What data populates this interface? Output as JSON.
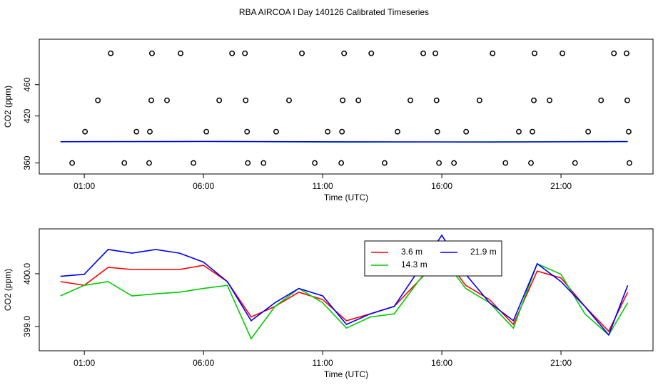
{
  "title": "RBA AIRCOA I  Day 140126  Calibrated Timeseries",
  "chart_data": [
    {
      "type": "scatter",
      "x_label": "Time (UTC)",
      "y_label": "CO2 (ppm)",
      "xlim": [
        -0.89,
        24.86
      ],
      "xticks": [
        {
          "value": 1,
          "label": "01:00"
        },
        {
          "value": 6,
          "label": "06:00"
        },
        {
          "value": 11,
          "label": "11:00"
        },
        {
          "value": 16,
          "label": "16:00"
        },
        {
          "value": 21,
          "label": "21:00"
        }
      ],
      "ylim": [
        346,
        518
      ],
      "yticks": [
        360,
        420,
        460
      ],
      "series": [
        {
          "kind": "points",
          "color": "#000000",
          "x": [
            2.11,
            3.84,
            5.04,
            7.2,
            7.74,
            10.13,
            11.9,
            13.04,
            15.22,
            15.73,
            18.13,
            19.89,
            21.06,
            23.22,
            23.75,
            1.57,
            3.81,
            4.47,
            6.66,
            7.77,
            9.59,
            11.84,
            12.5,
            14.68,
            15.78,
            17.58,
            19.86,
            20.52,
            22.68,
            23.78,
            1.03,
            3.19,
            3.75,
            6.12,
            7.83,
            9.05,
            11.21,
            11.81,
            14.14,
            15.81,
            17.02,
            19.23,
            19.8,
            22.14,
            23.84,
            0.49,
            2.68,
            3.72,
            5.58,
            7.86,
            8.52,
            10.67,
            11.78,
            13.6,
            15.88,
            16.51,
            18.67,
            19.74,
            21.59,
            23.87
          ],
          "values": [
            500,
            500,
            500,
            500,
            500,
            500,
            500,
            500,
            500,
            500,
            500,
            500,
            500,
            500,
            500,
            440,
            440,
            440,
            440,
            440,
            440,
            440,
            440,
            440,
            440,
            440,
            440,
            440,
            440,
            440,
            400,
            400,
            400,
            400,
            400,
            400,
            400,
            400,
            400,
            400,
            400,
            400,
            400,
            400,
            400,
            360,
            360,
            360,
            360,
            360,
            360,
            360,
            360,
            360,
            360,
            360,
            360,
            360,
            360,
            360
          ]
        },
        {
          "kind": "line",
          "color": "#00cc00",
          "x": [
            0,
            6,
            12,
            18,
            23.8
          ],
          "values": [
            387,
            387.5,
            386.5,
            387,
            387.5
          ]
        },
        {
          "kind": "line",
          "color": "#0000ff",
          "x": [
            0,
            6,
            12,
            18,
            23.8
          ],
          "values": [
            387.2,
            387.5,
            387,
            386.8,
            387.3
          ]
        }
      ]
    },
    {
      "type": "line",
      "x_label": "Time (UTC)",
      "y_label": "CO2 (ppm)",
      "xlim": [
        -0.89,
        24.86
      ],
      "xticks": [
        {
          "value": 1,
          "label": "01:00"
        },
        {
          "value": 6,
          "label": "06:00"
        },
        {
          "value": 11,
          "label": "11:00"
        },
        {
          "value": 16,
          "label": "16:00"
        },
        {
          "value": 21,
          "label": "21:00"
        }
      ],
      "ylim": [
        398.54,
        400.85
      ],
      "yticks": [
        {
          "value": 399,
          "label": "399.0"
        },
        {
          "value": 400,
          "label": "400.0"
        }
      ],
      "x": [
        0,
        1,
        2,
        3,
        4,
        5,
        6,
        7,
        8,
        9,
        10,
        11,
        12,
        13,
        14,
        15,
        16,
        17,
        18,
        19,
        20,
        21,
        22,
        23,
        23.8
      ],
      "series": [
        {
          "name": "3.6 m",
          "color": "#ff0000",
          "values": [
            399.85,
            399.78,
            400.12,
            400.08,
            400.08,
            400.08,
            400.16,
            399.85,
            399.18,
            399.38,
            399.65,
            399.51,
            399.11,
            399.24,
            399.38,
            399.85,
            400.39,
            399.78,
            399.51,
            399.04,
            400.05,
            399.92,
            399.38,
            398.91,
            399.65
          ]
        },
        {
          "name": "14.3 m",
          "color": "#00cc00",
          "values": [
            399.58,
            399.78,
            399.85,
            399.58,
            399.62,
            399.65,
            399.72,
            399.78,
            398.77,
            399.38,
            399.72,
            399.45,
            398.97,
            399.18,
            399.24,
            399.85,
            400.32,
            399.72,
            399.45,
            398.97,
            400.19,
            399.99,
            399.24,
            398.84,
            399.45
          ]
        },
        {
          "name": "21.9 m",
          "color": "#0000ff",
          "values": [
            399.95,
            399.99,
            400.46,
            400.39,
            400.46,
            400.39,
            400.22,
            399.85,
            399.11,
            399.45,
            399.72,
            399.58,
            399.04,
            399.24,
            399.38,
            400.05,
            400.73,
            399.99,
            399.45,
            399.11,
            400.19,
            399.85,
            399.38,
            398.84,
            399.78
          ]
        }
      ]
    }
  ]
}
